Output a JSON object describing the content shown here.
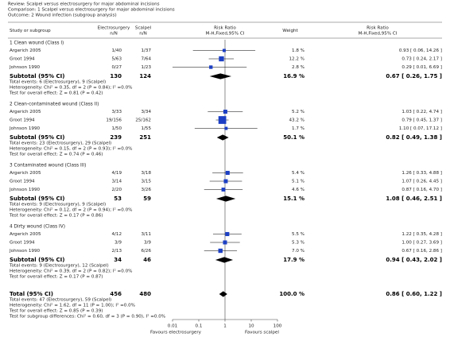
{
  "chart_data": {
    "type": "forest",
    "header": [
      "Review:  Scalpel versus electrosurgery for major abdominal incisions",
      "Comparison:  1 Scalpel versus electrosurgery for major abdominal incisions",
      "Outcome:  2 Wound infection (subgroup analysis)"
    ],
    "columns": [
      [
        "Study or subgroup"
      ],
      [
        "Electrosurgery",
        "n/N"
      ],
      [
        "Scalpel",
        "n/N"
      ],
      [
        "Risk Ratio",
        "M-H,Fixed,95% CI"
      ],
      [
        "Weight"
      ],
      [
        "Risk Ratio",
        "M-H,Fixed,95% CI"
      ]
    ],
    "xscale": "log",
    "xlim": [
      0.01,
      100
    ],
    "xticks": [
      0.01,
      0.1,
      1,
      10,
      100
    ],
    "reference_line": 1,
    "favours": [
      "Favours electrosurgery",
      "Favours scalpel"
    ],
    "square_color": "#1c3fc4",
    "groups": [
      {
        "title": "1 Clean wound (Class I)",
        "studies": [
          {
            "name": "Argerich 2005",
            "e": "1/40",
            "s": "1/37",
            "weight": 1.8,
            "weight_label": "1.8 %",
            "rr": 0.93,
            "lo": 0.06,
            "hi": 14.26,
            "ci_label": "0.93 [ 0.06, 14.26 ]"
          },
          {
            "name": "Groot 1994",
            "e": "5/63",
            "s": "7/64",
            "weight": 12.2,
            "weight_label": "12.2 %",
            "rr": 0.73,
            "lo": 0.24,
            "hi": 2.17,
            "ci_label": "0.73 [ 0.24, 2.17 ]"
          },
          {
            "name": "Johnson 1990",
            "e": "0/27",
            "s": "1/23",
            "weight": 2.8,
            "weight_label": "2.8 %",
            "rr": 0.29,
            "lo": 0.01,
            "hi": 6.69,
            "ci_label": "0.29 [ 0.01, 6.69 ]"
          }
        ],
        "subtotal": {
          "label": "Subtotal (95% CI)",
          "e": 130,
          "s": 124,
          "weight": 16.9,
          "weight_label": "16.9 %",
          "rr": 0.67,
          "lo": 0.26,
          "hi": 1.75,
          "ci_label": "0.67 [ 0.26, 1.75 ]"
        },
        "notes": [
          "Total events: 6 (Electrosurgery), 9 (Scalpel)",
          "Heterogeneity: Chi² = 0.35, df = 2 (P = 0.84); I² =0.0%",
          "Test for overall effect: Z = 0.81 (P = 0.42)"
        ]
      },
      {
        "title": "2 Clean-contaminated wound (Class II)",
        "studies": [
          {
            "name": "Argerich 2005",
            "e": "3/33",
            "s": "3/34",
            "weight": 5.2,
            "weight_label": "5.2 %",
            "rr": 1.03,
            "lo": 0.22,
            "hi": 4.74,
            "ci_label": "1.03 [ 0.22, 4.74 ]"
          },
          {
            "name": "Groot 1994",
            "e": "19/156",
            "s": "25/162",
            "weight": 43.2,
            "weight_label": "43.2 %",
            "rr": 0.79,
            "lo": 0.45,
            "hi": 1.37,
            "ci_label": "0.79 [ 0.45, 1.37 ]"
          },
          {
            "name": "Johnson 1990",
            "e": "1/50",
            "s": "1/55",
            "weight": 1.7,
            "weight_label": "1.7 %",
            "rr": 1.1,
            "lo": 0.07,
            "hi": 17.12,
            "ci_label": "1.10 [ 0.07, 17.12 ]"
          }
        ],
        "subtotal": {
          "label": "Subtotal (95% CI)",
          "e": 239,
          "s": 251,
          "weight": 50.1,
          "weight_label": "50.1 %",
          "rr": 0.82,
          "lo": 0.49,
          "hi": 1.38,
          "ci_label": "0.82 [ 0.49, 1.38 ]"
        },
        "notes": [
          "Total events: 23 (Electrosurgery), 29 (Scalpel)",
          "Heterogeneity: Chi² = 0.15, df = 2 (P = 0.93); I² =0.0%",
          "Test for overall effect: Z = 0.74 (P = 0.46)"
        ]
      },
      {
        "title": "3 Contaminated wound (Class III)",
        "studies": [
          {
            "name": "Argerich 2005",
            "e": "4/19",
            "s": "3/18",
            "weight": 5.4,
            "weight_label": "5.4 %",
            "rr": 1.26,
            "lo": 0.33,
            "hi": 4.88,
            "ci_label": "1.26 [ 0.33, 4.88 ]"
          },
          {
            "name": "Groot 1994",
            "e": "3/14",
            "s": "3/15",
            "weight": 5.1,
            "weight_label": "5.1 %",
            "rr": 1.07,
            "lo": 0.26,
            "hi": 4.45,
            "ci_label": "1.07 [ 0.26, 4.45 ]"
          },
          {
            "name": "Johnson 1990",
            "e": "2/20",
            "s": "3/26",
            "weight": 4.6,
            "weight_label": "4.6 %",
            "rr": 0.87,
            "lo": 0.16,
            "hi": 4.7,
            "ci_label": "0.87 [ 0.16, 4.70 ]"
          }
        ],
        "subtotal": {
          "label": "Subtotal (95% CI)",
          "e": 53,
          "s": 59,
          "weight": 15.1,
          "weight_label": "15.1 %",
          "rr": 1.08,
          "lo": 0.46,
          "hi": 2.51,
          "ci_label": "1.08 [ 0.46, 2.51 ]"
        },
        "notes": [
          "Total events: 9 (Electrosurgery), 9 (Scalpel)",
          "Heterogeneity: Chi² = 0.12, df = 2 (P = 0.94); I² =0.0%",
          "Test for overall effect: Z = 0.17 (P = 0.86)"
        ]
      },
      {
        "title": "4 Dirty wound (Class IV)",
        "studies": [
          {
            "name": "Argerich 2005",
            "e": "4/12",
            "s": "3/11",
            "weight": 5.5,
            "weight_label": "5.5 %",
            "rr": 1.22,
            "lo": 0.35,
            "hi": 4.28,
            "ci_label": "1.22 [ 0.35, 4.28 ]"
          },
          {
            "name": "Groot 1994",
            "e": "3/9",
            "s": "3/9",
            "weight": 5.3,
            "weight_label": "5.3 %",
            "rr": 1.0,
            "lo": 0.27,
            "hi": 3.69,
            "ci_label": "1.00 [ 0.27, 3.69 ]"
          },
          {
            "name": "Johnson 1990",
            "e": "2/13",
            "s": "6/26",
            "weight": 7.0,
            "weight_label": "7.0 %",
            "rr": 0.67,
            "lo": 0.16,
            "hi": 2.86,
            "ci_label": "0.67 [ 0.16, 2.86 ]"
          }
        ],
        "subtotal": {
          "label": "Subtotal (95% CI)",
          "e": 34,
          "s": 46,
          "weight": 17.9,
          "weight_label": "17.9 %",
          "rr": 0.94,
          "lo": 0.43,
          "hi": 2.02,
          "ci_label": "0.94 [ 0.43, 2.02 ]"
        },
        "notes": [
          "Total events: 9 (Electrosurgery), 12 (Scalpel)",
          "Heterogeneity: Chi² = 0.39, df = 2 (P = 0.82); I² =0.0%",
          "Test for overall effect: Z = 0.17 (P = 0.87)"
        ]
      }
    ],
    "total": {
      "label": "Total (95% CI)",
      "e": 456,
      "s": 480,
      "weight": 100.0,
      "weight_label": "100.0 %",
      "rr": 0.86,
      "lo": 0.6,
      "hi": 1.22,
      "ci_label": "0.86 [ 0.60, 1.22 ]"
    },
    "total_notes": [
      "Total events: 47 (Electrosurgery), 59 (Scalpel)",
      "Heterogeneity: Chi² = 1.62, df = 11 (P = 1.00); I² =0.0%",
      "Test for overall effect: Z = 0.85 (P = 0.39)",
      "Test for subgroup differences: Chi² = 0.60, df = 3 (P = 0.90), I² =0.0%"
    ]
  }
}
